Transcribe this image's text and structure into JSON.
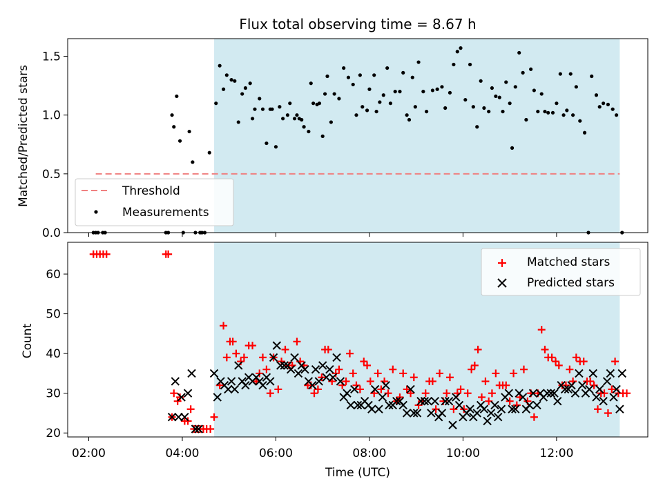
{
  "chart_data": [
    {
      "type": "scatter",
      "title": "Flux total observing time = 8.67 h",
      "ylabel": "Matched/Predicted stars",
      "xlabel": "",
      "xlim": [
        1.55,
        13.95
      ],
      "ylim": [
        0,
        1.65
      ],
      "grid": false,
      "x_ticks": [
        2,
        4,
        6,
        8,
        10,
        12
      ],
      "y_ticks": [
        0.0,
        0.5,
        1.0,
        1.5
      ],
      "y_tick_labels": [
        "0.0",
        "0.5",
        "1.0",
        "1.5"
      ],
      "shaded_span": {
        "from": 4.68,
        "to": 13.35,
        "color": "#add8e6"
      },
      "threshold": {
        "name": "Threshold",
        "value": 0.5,
        "from": 2.15,
        "to": 13.35,
        "color": "#f08080"
      },
      "legend": {
        "location": "lower-left",
        "entries": [
          "Threshold",
          "Measurements"
        ]
      },
      "series": [
        {
          "name": "Measurements",
          "color": "#000000",
          "x": [
            2.1,
            2.15,
            2.2,
            2.3,
            2.35,
            3.65,
            3.7,
            3.78,
            3.82,
            3.88,
            3.95,
            4.02,
            4.15,
            4.22,
            4.28,
            4.38,
            4.42,
            4.48,
            4.58,
            4.72,
            4.8,
            4.88,
            4.95,
            5.05,
            5.12,
            5.2,
            5.28,
            5.35,
            5.45,
            5.5,
            5.55,
            5.65,
            5.72,
            5.8,
            5.88,
            5.92,
            6.0,
            6.08,
            6.15,
            6.25,
            6.3,
            6.4,
            6.45,
            6.5,
            6.55,
            6.6,
            6.7,
            6.75,
            6.8,
            6.88,
            6.93,
            7.0,
            7.05,
            7.1,
            7.18,
            7.25,
            7.35,
            7.45,
            7.55,
            7.65,
            7.72,
            7.8,
            7.85,
            7.95,
            8.0,
            8.1,
            8.15,
            8.22,
            8.3,
            8.38,
            8.45,
            8.55,
            8.65,
            8.72,
            8.8,
            8.85,
            8.92,
            8.98,
            9.05,
            9.15,
            9.22,
            9.35,
            9.45,
            9.55,
            9.62,
            9.72,
            9.8,
            9.88,
            9.95,
            10.05,
            10.15,
            10.22,
            10.3,
            10.38,
            10.45,
            10.55,
            10.62,
            10.7,
            10.78,
            10.85,
            10.92,
            11.0,
            11.05,
            11.12,
            11.2,
            11.28,
            11.35,
            11.45,
            11.52,
            11.6,
            11.68,
            11.75,
            11.82,
            11.92,
            12.0,
            12.08,
            12.15,
            12.22,
            12.3,
            12.35,
            12.42,
            12.5,
            12.6,
            12.68,
            12.75,
            12.85,
            12.92,
            13.0,
            13.1,
            13.2,
            13.28,
            13.4
          ],
          "y": [
            0.0,
            0.0,
            0.0,
            0.0,
            0.0,
            0.0,
            0.0,
            1.0,
            0.9,
            1.16,
            0.78,
            0.0,
            0.86,
            0.6,
            0.0,
            0.0,
            0.0,
            0.0,
            0.68,
            1.1,
            1.42,
            1.22,
            1.34,
            1.3,
            1.29,
            0.94,
            1.18,
            1.23,
            1.27,
            0.97,
            1.05,
            1.14,
            1.05,
            0.76,
            1.05,
            1.05,
            0.73,
            1.07,
            0.97,
            1.0,
            1.1,
            0.97,
            1.0,
            0.97,
            0.96,
            0.9,
            0.86,
            1.27,
            1.1,
            1.09,
            1.1,
            0.82,
            1.18,
            1.33,
            0.94,
            1.18,
            1.14,
            1.4,
            1.32,
            1.26,
            1.0,
            1.34,
            1.07,
            1.04,
            1.22,
            1.34,
            1.03,
            1.11,
            1.17,
            1.4,
            1.1,
            1.2,
            1.2,
            1.36,
            1.0,
            0.96,
            1.32,
            1.07,
            1.45,
            1.2,
            1.03,
            1.21,
            1.22,
            1.24,
            1.06,
            1.19,
            1.43,
            1.54,
            1.57,
            1.13,
            1.43,
            1.07,
            0.9,
            1.29,
            1.06,
            1.03,
            1.23,
            1.16,
            1.15,
            1.03,
            1.28,
            1.1,
            0.72,
            1.24,
            1.53,
            1.36,
            0.96,
            1.39,
            1.21,
            1.03,
            1.18,
            1.03,
            1.02,
            1.02,
            1.1,
            1.35,
            1.0,
            1.04,
            1.35,
            1.0,
            1.24,
            0.95,
            0.85,
            0.0,
            1.33,
            1.17,
            1.07,
            1.1,
            1.09,
            1.05,
            1.0,
            0.0
          ]
        }
      ]
    },
    {
      "type": "scatter",
      "title": "",
      "xlabel": "Time (UTC)",
      "ylabel": "Count",
      "xlim": [
        1.55,
        13.95
      ],
      "ylim": [
        19,
        68
      ],
      "grid": false,
      "x_ticks": [
        2,
        4,
        6,
        8,
        10,
        12
      ],
      "x_tick_labels": [
        "02:00",
        "04:00",
        "06:00",
        "08:00",
        "10:00",
        "12:00"
      ],
      "y_ticks": [
        20,
        30,
        40,
        50,
        60
      ],
      "y_tick_labels": [
        "20",
        "30",
        "40",
        "50",
        "60"
      ],
      "shaded_span": {
        "from": 4.68,
        "to": 13.35,
        "color": "#add8e6"
      },
      "legend": {
        "location": "upper-right",
        "entries": [
          "Matched stars",
          "Predicted stars"
        ]
      },
      "series": [
        {
          "name": "Matched stars",
          "marker": "+",
          "color": "#ff0000",
          "x": [
            2.1,
            2.17,
            2.24,
            2.31,
            2.38,
            3.65,
            3.7,
            3.78,
            3.82,
            3.9,
            3.95,
            4.05,
            4.12,
            4.18,
            4.25,
            4.32,
            4.38,
            4.45,
            4.52,
            4.6,
            4.68,
            4.8,
            4.88,
            4.95,
            5.02,
            5.08,
            5.15,
            5.25,
            5.32,
            5.42,
            5.5,
            5.58,
            5.65,
            5.72,
            5.8,
            5.88,
            5.95,
            6.05,
            6.12,
            6.2,
            6.28,
            6.35,
            6.45,
            6.52,
            6.6,
            6.68,
            6.75,
            6.82,
            6.9,
            6.98,
            7.05,
            7.12,
            7.2,
            7.28,
            7.35,
            7.42,
            7.5,
            7.58,
            7.65,
            7.72,
            7.8,
            7.88,
            7.95,
            8.02,
            8.1,
            8.18,
            8.25,
            8.32,
            8.4,
            8.5,
            8.58,
            8.65,
            8.72,
            8.8,
            8.88,
            8.95,
            9.05,
            9.12,
            9.2,
            9.28,
            9.35,
            9.42,
            9.5,
            9.58,
            9.65,
            9.72,
            9.8,
            9.88,
            9.95,
            10.02,
            10.1,
            10.18,
            10.25,
            10.32,
            10.4,
            10.48,
            10.55,
            10.62,
            10.7,
            10.78,
            10.85,
            10.92,
            11.0,
            11.08,
            11.15,
            11.22,
            11.3,
            11.38,
            11.45,
            11.52,
            11.6,
            11.68,
            11.75,
            11.82,
            11.9,
            11.98,
            12.05,
            12.12,
            12.2,
            12.28,
            12.35,
            12.42,
            12.5,
            12.58,
            12.65,
            12.72,
            12.8,
            12.88,
            12.95,
            13.02,
            13.1,
            13.18,
            13.25,
            13.32,
            13.42,
            13.5
          ],
          "y": [
            65,
            65,
            65,
            65,
            65,
            65,
            65,
            24,
            30,
            28,
            29,
            23,
            23,
            26,
            21,
            21,
            21,
            21,
            21,
            21,
            24,
            32,
            47,
            39,
            43,
            43,
            40,
            38,
            39,
            42,
            42,
            33,
            35,
            39,
            36,
            30,
            39,
            31,
            38,
            41,
            37,
            37,
            43,
            38,
            37,
            32,
            32,
            30,
            31,
            34,
            41,
            41,
            33,
            35,
            36,
            32,
            33,
            40,
            35,
            32,
            31,
            38,
            37,
            33,
            30,
            35,
            31,
            33,
            30,
            36,
            28,
            29,
            35,
            31,
            30,
            34,
            27,
            28,
            30,
            33,
            33,
            26,
            35,
            28,
            30,
            34,
            26,
            30,
            31,
            26,
            30,
            36,
            37,
            41,
            29,
            33,
            28,
            30,
            35,
            32,
            32,
            32,
            28,
            35,
            27,
            29,
            36,
            28,
            30,
            24,
            30,
            46,
            41,
            39,
            39,
            38,
            37,
            32,
            32,
            36,
            33,
            39,
            38,
            38,
            33,
            33,
            32,
            26,
            30,
            30,
            25,
            31,
            38,
            30,
            30,
            30
          ]
        },
        {
          "name": "Predicted stars",
          "marker": "x",
          "color": "#000000",
          "x": [
            3.78,
            3.85,
            3.92,
            3.98,
            4.05,
            4.12,
            4.2,
            4.28,
            4.35,
            4.68,
            4.75,
            4.82,
            4.9,
            4.98,
            5.05,
            5.12,
            5.2,
            5.28,
            5.35,
            5.42,
            5.5,
            5.58,
            5.65,
            5.72,
            5.8,
            5.88,
            5.95,
            6.02,
            6.1,
            6.18,
            6.25,
            6.32,
            6.4,
            6.48,
            6.55,
            6.62,
            6.7,
            6.78,
            6.85,
            6.92,
            7.0,
            7.08,
            7.15,
            7.22,
            7.3,
            7.38,
            7.45,
            7.52,
            7.6,
            7.68,
            7.75,
            7.82,
            7.9,
            7.98,
            8.05,
            8.12,
            8.2,
            8.28,
            8.35,
            8.42,
            8.5,
            8.58,
            8.65,
            8.72,
            8.8,
            8.88,
            8.95,
            9.02,
            9.1,
            9.18,
            9.25,
            9.32,
            9.4,
            9.48,
            9.55,
            9.62,
            9.7,
            9.78,
            9.85,
            9.92,
            10.0,
            10.08,
            10.15,
            10.22,
            10.3,
            10.38,
            10.45,
            10.52,
            10.6,
            10.68,
            10.75,
            10.82,
            10.9,
            10.98,
            11.05,
            11.12,
            11.2,
            11.28,
            11.35,
            11.42,
            11.5,
            11.58,
            11.65,
            11.72,
            11.8,
            11.88,
            11.95,
            12.02,
            12.1,
            12.18,
            12.25,
            12.32,
            12.4,
            12.48,
            12.55,
            12.62,
            12.7,
            12.78,
            12.85,
            12.92,
            13.0,
            13.08,
            13.15,
            13.22,
            13.28,
            13.35,
            13.4
          ],
          "y": [
            24,
            33,
            24,
            29,
            24,
            30,
            35,
            21,
            21,
            35,
            29,
            33,
            32,
            31,
            33,
            31,
            37,
            33,
            32,
            34,
            33,
            34,
            33,
            32,
            34,
            33,
            39,
            42,
            37,
            37,
            37,
            36,
            39,
            35,
            37,
            36,
            33,
            32,
            36,
            33,
            37,
            34,
            36,
            34,
            39,
            33,
            29,
            30,
            27,
            31,
            27,
            27,
            28,
            27,
            26,
            31,
            26,
            29,
            32,
            27,
            27,
            28,
            28,
            27,
            25,
            31,
            25,
            25,
            28,
            28,
            28,
            25,
            28,
            24,
            25,
            28,
            28,
            22,
            29,
            27,
            24,
            25,
            26,
            24,
            25,
            27,
            26,
            23,
            25,
            27,
            24,
            26,
            29,
            30,
            26,
            26,
            30,
            29,
            26,
            27,
            30,
            27,
            30,
            29,
            30,
            30,
            30,
            28,
            32,
            31,
            31,
            32,
            30,
            35,
            32,
            30,
            31,
            35,
            29,
            31,
            28,
            33,
            35,
            29,
            31,
            26,
            35
          ]
        }
      ]
    }
  ]
}
